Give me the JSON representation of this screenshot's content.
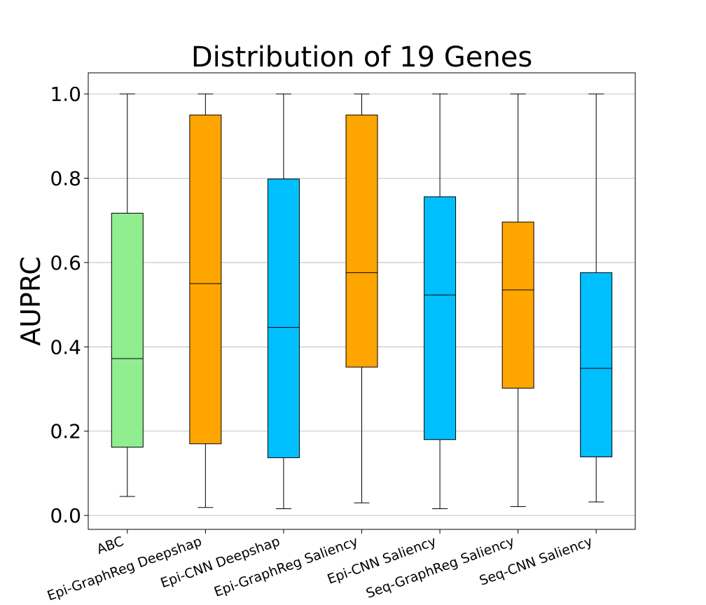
{
  "chart_data": {
    "type": "boxplot",
    "title": "Distribution of 19 Genes",
    "xlabel": "",
    "ylabel": "AUPRC",
    "ylim": [
      -0.033,
      1.05
    ],
    "yticks": [
      "0.0",
      "0.2",
      "0.4",
      "0.6",
      "0.8",
      "1.0"
    ],
    "ytick_values": [
      0.0,
      0.2,
      0.4,
      0.6,
      0.8,
      1.0
    ],
    "grid": "horizontal",
    "categories": [
      "ABC",
      "Epi-GraphReg Deepshap",
      "Epi-CNN Deepshap",
      "Epi-GraphReg Saliency",
      "Epi-CNN Saliency",
      "Seq-GraphReg Saliency",
      "Seq-CNN Saliency"
    ],
    "boxes": [
      {
        "min": 0.045,
        "q1": 0.162,
        "median": 0.372,
        "q3": 0.717,
        "max": 1.0,
        "color": "#90ee90"
      },
      {
        "min": 0.019,
        "q1": 0.17,
        "median": 0.55,
        "q3": 0.95,
        "max": 1.0,
        "color": "#ffa500"
      },
      {
        "min": 0.016,
        "q1": 0.137,
        "median": 0.446,
        "q3": 0.798,
        "max": 1.0,
        "color": "#00bfff"
      },
      {
        "min": 0.03,
        "q1": 0.352,
        "median": 0.576,
        "q3": 0.95,
        "max": 1.0,
        "color": "#ffa500"
      },
      {
        "min": 0.016,
        "q1": 0.18,
        "median": 0.523,
        "q3": 0.756,
        "max": 1.0,
        "color": "#00bfff"
      },
      {
        "min": 0.021,
        "q1": 0.302,
        "median": 0.535,
        "q3": 0.696,
        "max": 1.0,
        "color": "#ffa500"
      },
      {
        "min": 0.032,
        "q1": 0.139,
        "median": 0.349,
        "q3": 0.576,
        "max": 1.0,
        "color": "#00bfff"
      }
    ]
  }
}
